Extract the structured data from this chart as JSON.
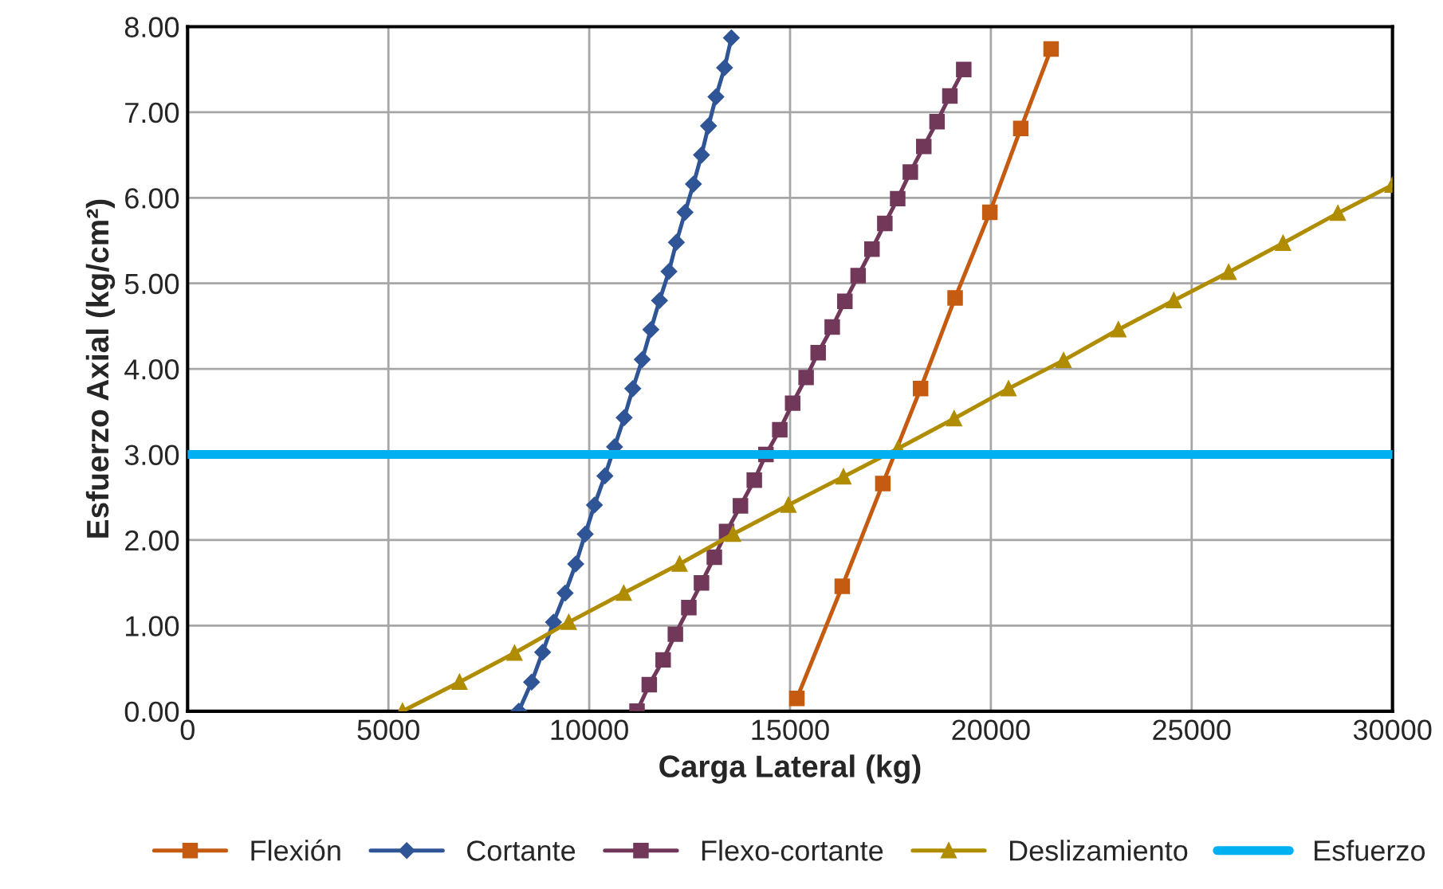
{
  "chart_data": {
    "type": "line",
    "xlabel": "Carga Lateral (kg)",
    "ylabel": "Esfuerzo Axial (kg/cm²)",
    "xlim": [
      0,
      30000
    ],
    "xticks": [
      0,
      5000,
      10000,
      15000,
      20000,
      25000,
      30000
    ],
    "ylim": [
      0,
      8
    ],
    "yticks": [
      {
        "value": 0,
        "label": "0.00"
      },
      {
        "value": 1,
        "label": "1.00"
      },
      {
        "value": 2,
        "label": "2.00"
      },
      {
        "value": 3,
        "label": "3.00"
      },
      {
        "value": 4,
        "label": "4.00"
      },
      {
        "value": 5,
        "label": "5.00"
      },
      {
        "value": 6,
        "label": "6.00"
      },
      {
        "value": 7,
        "label": "7.00"
      },
      {
        "value": 8,
        "label": "8.00"
      }
    ],
    "grid": true,
    "legend": "bottom",
    "line_style": "solid",
    "series": [
      {
        "name": "Flexión",
        "color": "#c55a11",
        "marker": "square",
        "x": [
          15170,
          16300,
          17310,
          18250,
          19110,
          19975,
          20745,
          21500
        ],
        "values": [
          0.15,
          1.46,
          2.66,
          3.77,
          4.83,
          5.83,
          6.81,
          7.74
        ]
      },
      {
        "name": "Cortante",
        "color": "#2f5597",
        "marker": "diamond",
        "x": [
          8245,
          8565,
          8840,
          9110,
          9400,
          9665,
          9900,
          10130,
          10390,
          10630,
          10870,
          11085,
          11320,
          11535,
          11750,
          11985,
          12170,
          12385,
          12595,
          12795,
          12970,
          13155,
          13370,
          13540
        ],
        "values": [
          0.0,
          0.34,
          0.69,
          1.04,
          1.38,
          1.72,
          2.07,
          2.41,
          2.75,
          3.09,
          3.43,
          3.77,
          4.11,
          4.46,
          4.8,
          5.14,
          5.48,
          5.83,
          6.16,
          6.5,
          6.84,
          7.18,
          7.52,
          7.87
        ]
      },
      {
        "name": "Flexo-cortante",
        "color": "#71385a",
        "marker": "square",
        "x": [
          11190,
          11495,
          11840,
          12145,
          12480,
          12795,
          13115,
          13420,
          13765,
          14110,
          14400,
          14745,
          15065,
          15400,
          15700,
          16050,
          16365,
          16695,
          17040,
          17360,
          17680,
          17995,
          18330,
          18660,
          18980,
          19325
        ],
        "values": [
          0.0,
          0.31,
          0.6,
          0.9,
          1.21,
          1.5,
          1.8,
          2.1,
          2.4,
          2.7,
          3.0,
          3.29,
          3.6,
          3.9,
          4.19,
          4.49,
          4.79,
          5.09,
          5.4,
          5.7,
          5.99,
          6.3,
          6.6,
          6.89,
          7.19,
          7.5
        ]
      },
      {
        "name": "Deslizamiento",
        "color": "#b08c00",
        "marker": "triangle",
        "x": [
          5350,
          6770,
          8140,
          9490,
          10860,
          12250,
          13580,
          14960,
          16330,
          17690,
          19085,
          20440,
          21810,
          23175,
          24555,
          25920,
          27275,
          28640,
          30000
        ],
        "values": [
          0.0,
          0.34,
          0.68,
          1.04,
          1.38,
          1.72,
          2.07,
          2.41,
          2.74,
          3.07,
          3.42,
          3.77,
          4.1,
          4.46,
          4.8,
          5.13,
          5.47,
          5.82,
          6.15
        ]
      },
      {
        "name": "Esfuerzo",
        "color": "#00b0f0",
        "marker": "none",
        "x": [
          0,
          30000
        ],
        "values": [
          3,
          3
        ]
      }
    ]
  }
}
